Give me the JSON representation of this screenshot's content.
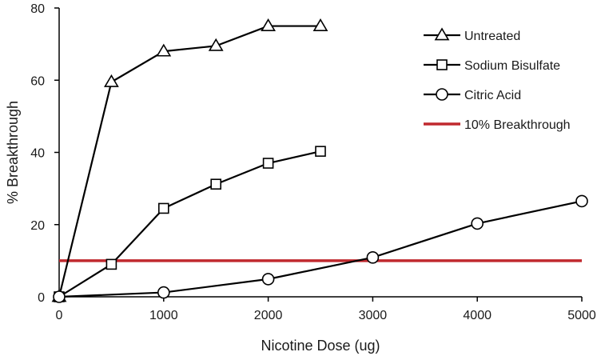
{
  "chart_data": {
    "type": "line",
    "title": "",
    "xlabel": "Nicotine Dose (ug)",
    "ylabel": "% Breakthrough",
    "xlim": [
      0,
      5000
    ],
    "ylim": [
      0,
      80
    ],
    "xticks": [
      0,
      1000,
      2000,
      3000,
      4000,
      5000
    ],
    "yticks": [
      0,
      20,
      40,
      60,
      80
    ],
    "grid": false,
    "legend_position": "top-right",
    "series": [
      {
        "name": "Untreated",
        "marker": "triangle",
        "color": "#000000",
        "x": [
          0,
          500,
          1000,
          1500,
          2000,
          2500
        ],
        "y": [
          0,
          59.5,
          68,
          69.5,
          75,
          75
        ]
      },
      {
        "name": "Sodium Bisulfate",
        "marker": "square",
        "color": "#000000",
        "x": [
          0,
          500,
          1000,
          1500,
          2000,
          2500
        ],
        "y": [
          0,
          9,
          24.5,
          31.2,
          37,
          40.3
        ]
      },
      {
        "name": "Citric Acid",
        "marker": "circle",
        "color": "#000000",
        "x": [
          0,
          1000,
          2000,
          3000,
          4000,
          5000
        ],
        "y": [
          0,
          1.2,
          4.9,
          10.9,
          20.3,
          26.5
        ]
      },
      {
        "name": "10% Breakthrough",
        "marker": "none",
        "color": "#c0292e",
        "x": [
          0,
          5000
        ],
        "y": [
          10,
          10
        ]
      }
    ]
  }
}
